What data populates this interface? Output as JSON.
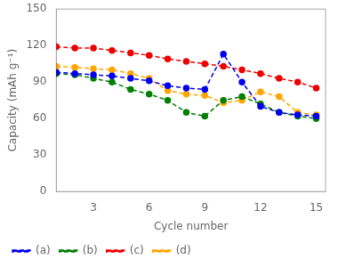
{
  "chart_data": {
    "type": "line",
    "x": [
      1,
      2,
      3,
      4,
      5,
      6,
      7,
      8,
      9,
      10,
      11,
      12,
      13,
      14,
      15
    ],
    "series": [
      {
        "name": "(a)",
        "color": "#0000EE",
        "values": [
          98,
          97,
          96,
          95,
          93,
          91,
          87,
          85,
          84,
          113,
          90,
          70,
          65,
          63,
          62
        ]
      },
      {
        "name": "(b)",
        "color": "#008000",
        "values": [
          97,
          96,
          93,
          90,
          84,
          80,
          75,
          65,
          62,
          75,
          78,
          72,
          65,
          62,
          60
        ]
      },
      {
        "name": "(c)",
        "color": "#EE0000",
        "values": [
          119,
          118,
          118,
          116,
          114,
          112,
          109,
          107,
          105,
          103,
          100,
          97,
          93,
          90,
          85
        ]
      },
      {
        "name": "(d)",
        "color": "#FFA500",
        "values": [
          103,
          102,
          101,
          100,
          97,
          93,
          83,
          80,
          79,
          73,
          75,
          82,
          78,
          65,
          63
        ]
      }
    ],
    "xlabel": "Cycle number",
    "ylabel": "Capacity (mAh g⁻¹)",
    "xlim": [
      1,
      15.5
    ],
    "ylim": [
      0,
      150
    ],
    "xticks": [
      3,
      6,
      9,
      12,
      15
    ],
    "yticks": [
      0,
      30,
      60,
      90,
      120,
      150
    ],
    "grid": false,
    "legend": "lower left",
    "marker": "circle",
    "line_style": "dashed"
  }
}
